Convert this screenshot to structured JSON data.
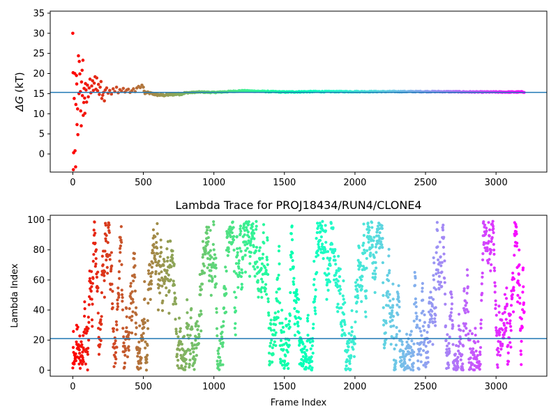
{
  "chart_data": [
    {
      "type": "scatter",
      "title": "",
      "xlabel": "",
      "ylabel": "ΔG (kT)",
      "ylabel_symbol": "ΔG",
      "ylabel_unit": "(kT)",
      "xlim": [
        -160,
        3360
      ],
      "ylim": [
        -4.5,
        35.5
      ],
      "xticks": [
        0,
        500,
        1000,
        1500,
        2000,
        2500,
        3000
      ],
      "yticks": [
        0,
        5,
        10,
        15,
        20,
        25,
        30,
        35
      ],
      "colormap": "rainbow",
      "hline": {
        "y": 15.3,
        "color": "#1f77b4"
      },
      "series_x_range": [
        0,
        3200
      ],
      "point_colors_by_index": true,
      "early_points": [
        {
          "x": 0,
          "y": 30.0
        },
        {
          "x": 2,
          "y": 20.2
        },
        {
          "x": 4,
          "y": -3.9
        },
        {
          "x": 6,
          "y": 0.3
        },
        {
          "x": 10,
          "y": 13.8
        },
        {
          "x": 14,
          "y": 20.0
        },
        {
          "x": 16,
          "y": 0.8
        },
        {
          "x": 20,
          "y": -3.2
        },
        {
          "x": 22,
          "y": 12.3
        },
        {
          "x": 26,
          "y": 19.5
        },
        {
          "x": 28,
          "y": 17.4
        },
        {
          "x": 30,
          "y": 7.3
        },
        {
          "x": 34,
          "y": 11.2
        },
        {
          "x": 36,
          "y": 4.8
        },
        {
          "x": 40,
          "y": 24.4
        },
        {
          "x": 44,
          "y": 15.0
        },
        {
          "x": 46,
          "y": 23.0
        },
        {
          "x": 50,
          "y": 19.9
        },
        {
          "x": 54,
          "y": 15.5
        },
        {
          "x": 56,
          "y": 10.7
        },
        {
          "x": 60,
          "y": 7.0
        },
        {
          "x": 62,
          "y": 17.9
        },
        {
          "x": 66,
          "y": 20.8
        },
        {
          "x": 68,
          "y": 14.5
        },
        {
          "x": 72,
          "y": 23.3
        },
        {
          "x": 74,
          "y": 9.6
        },
        {
          "x": 78,
          "y": 12.8
        },
        {
          "x": 80,
          "y": 16.3
        },
        {
          "x": 84,
          "y": 13.9
        },
        {
          "x": 86,
          "y": 10.1
        },
        {
          "x": 90,
          "y": 17.5
        },
        {
          "x": 94,
          "y": 15.9
        },
        {
          "x": 98,
          "y": 12.9
        },
        {
          "x": 104,
          "y": 17.1
        },
        {
          "x": 110,
          "y": 14.2
        },
        {
          "x": 116,
          "y": 16.4
        },
        {
          "x": 122,
          "y": 18.6
        },
        {
          "x": 128,
          "y": 15.2
        },
        {
          "x": 134,
          "y": 16.9
        },
        {
          "x": 140,
          "y": 18.2
        },
        {
          "x": 146,
          "y": 15.8
        },
        {
          "x": 152,
          "y": 17.6
        },
        {
          "x": 158,
          "y": 19.2
        },
        {
          "x": 164,
          "y": 16.1
        },
        {
          "x": 170,
          "y": 18.9
        },
        {
          "x": 176,
          "y": 15.7
        },
        {
          "x": 182,
          "y": 17.3
        },
        {
          "x": 188,
          "y": 14.8
        },
        {
          "x": 194,
          "y": 16.6
        },
        {
          "x": 200,
          "y": 18.0
        },
        {
          "x": 206,
          "y": 13.8
        },
        {
          "x": 212,
          "y": 14.6
        },
        {
          "x": 218,
          "y": 15.3
        },
        {
          "x": 224,
          "y": 13.2
        },
        {
          "x": 230,
          "y": 15.9
        },
        {
          "x": 240,
          "y": 16.4
        },
        {
          "x": 250,
          "y": 15.1
        },
        {
          "x": 262,
          "y": 15.8
        },
        {
          "x": 274,
          "y": 14.9
        },
        {
          "x": 286,
          "y": 16.2
        },
        {
          "x": 298,
          "y": 15.5
        },
        {
          "x": 310,
          "y": 16.6
        },
        {
          "x": 322,
          "y": 15.2
        },
        {
          "x": 334,
          "y": 16.0
        },
        {
          "x": 346,
          "y": 15.6
        },
        {
          "x": 358,
          "y": 16.3
        },
        {
          "x": 370,
          "y": 15.4
        },
        {
          "x": 382,
          "y": 15.9
        },
        {
          "x": 394,
          "y": 16.1
        },
        {
          "x": 406,
          "y": 15.3
        },
        {
          "x": 418,
          "y": 15.7
        },
        {
          "x": 430,
          "y": 16.2
        },
        {
          "x": 442,
          "y": 15.5
        },
        {
          "x": 454,
          "y": 16.4
        },
        {
          "x": 466,
          "y": 16.8
        },
        {
          "x": 478,
          "y": 16.5
        },
        {
          "x": 490,
          "y": 17.1
        },
        {
          "x": 500,
          "y": 16.6
        },
        {
          "x": 506,
          "y": 15.6
        },
        {
          "x": 512,
          "y": 15.0
        }
      ],
      "late_trend": [
        {
          "x": 520,
          "y": 15.3
        },
        {
          "x": 560,
          "y": 15.0
        },
        {
          "x": 600,
          "y": 14.7
        },
        {
          "x": 650,
          "y": 14.6
        },
        {
          "x": 700,
          "y": 14.8
        },
        {
          "x": 760,
          "y": 14.9
        },
        {
          "x": 800,
          "y": 15.2
        },
        {
          "x": 900,
          "y": 15.4
        },
        {
          "x": 1000,
          "y": 15.3
        },
        {
          "x": 1100,
          "y": 15.5
        },
        {
          "x": 1200,
          "y": 15.7
        },
        {
          "x": 1300,
          "y": 15.6
        },
        {
          "x": 1400,
          "y": 15.5
        },
        {
          "x": 1500,
          "y": 15.4
        },
        {
          "x": 1700,
          "y": 15.5
        },
        {
          "x": 2000,
          "y": 15.5
        },
        {
          "x": 2300,
          "y": 15.5
        },
        {
          "x": 2600,
          "y": 15.5
        },
        {
          "x": 2900,
          "y": 15.4
        },
        {
          "x": 3200,
          "y": 15.4
        }
      ]
    },
    {
      "type": "scatter",
      "title": "Lambda Trace for PROJ18434/RUN4/CLONE4",
      "xlabel": "Frame Index",
      "ylabel": "Lambda Index",
      "xlim": [
        -160,
        3360
      ],
      "ylim": [
        -4,
        103
      ],
      "xticks": [
        0,
        500,
        1000,
        1500,
        2000,
        2500,
        3000
      ],
      "yticks": [
        0,
        20,
        40,
        60,
        80,
        100
      ],
      "colormap": "rainbow",
      "hline": {
        "y": 21,
        "color": "#1f77b4"
      },
      "series_x_range": [
        0,
        3200
      ],
      "lambda_range": [
        0,
        99
      ],
      "point_colors_by_index": true,
      "frame_step": 1.5
    }
  ]
}
